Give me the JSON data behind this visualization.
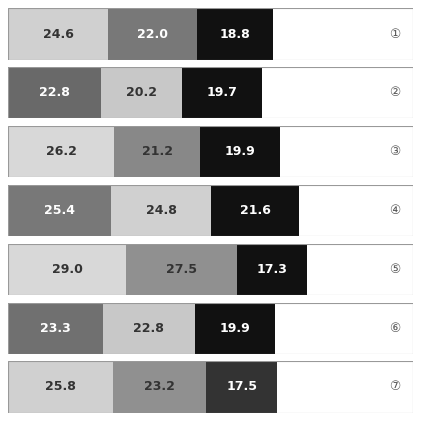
{
  "rows": [
    {
      "label": "①",
      "values": [
        24.6,
        22.0,
        18.8
      ],
      "colors": [
        "#d0d0d0",
        "#787878",
        "#111111"
      ]
    },
    {
      "label": "②",
      "values": [
        22.8,
        20.2,
        19.7
      ],
      "colors": [
        "#696969",
        "#c8c8c8",
        "#111111"
      ]
    },
    {
      "label": "③",
      "values": [
        26.2,
        21.2,
        19.9
      ],
      "colors": [
        "#d8d8d8",
        "#888888",
        "#111111"
      ]
    },
    {
      "label": "④",
      "values": [
        25.4,
        24.8,
        21.6
      ],
      "colors": [
        "#787878",
        "#d0d0d0",
        "#111111"
      ]
    },
    {
      "label": "⑤",
      "values": [
        29.0,
        27.5,
        17.3
      ],
      "colors": [
        "#d8d8d8",
        "#909090",
        "#111111"
      ]
    },
    {
      "label": "⑥",
      "values": [
        23.3,
        22.8,
        19.9
      ],
      "colors": [
        "#707070",
        "#c8c8c8",
        "#111111"
      ]
    },
    {
      "label": "⑦",
      "values": [
        25.8,
        23.2,
        17.5
      ],
      "colors": [
        "#d0d0d0",
        "#909090",
        "#333333"
      ]
    }
  ],
  "max_val": 100,
  "white_bg": "#ffffff",
  "border_color": "#999999",
  "fig_bg": "#ffffff",
  "label_fontsize": 9,
  "value_fontsize": 9
}
